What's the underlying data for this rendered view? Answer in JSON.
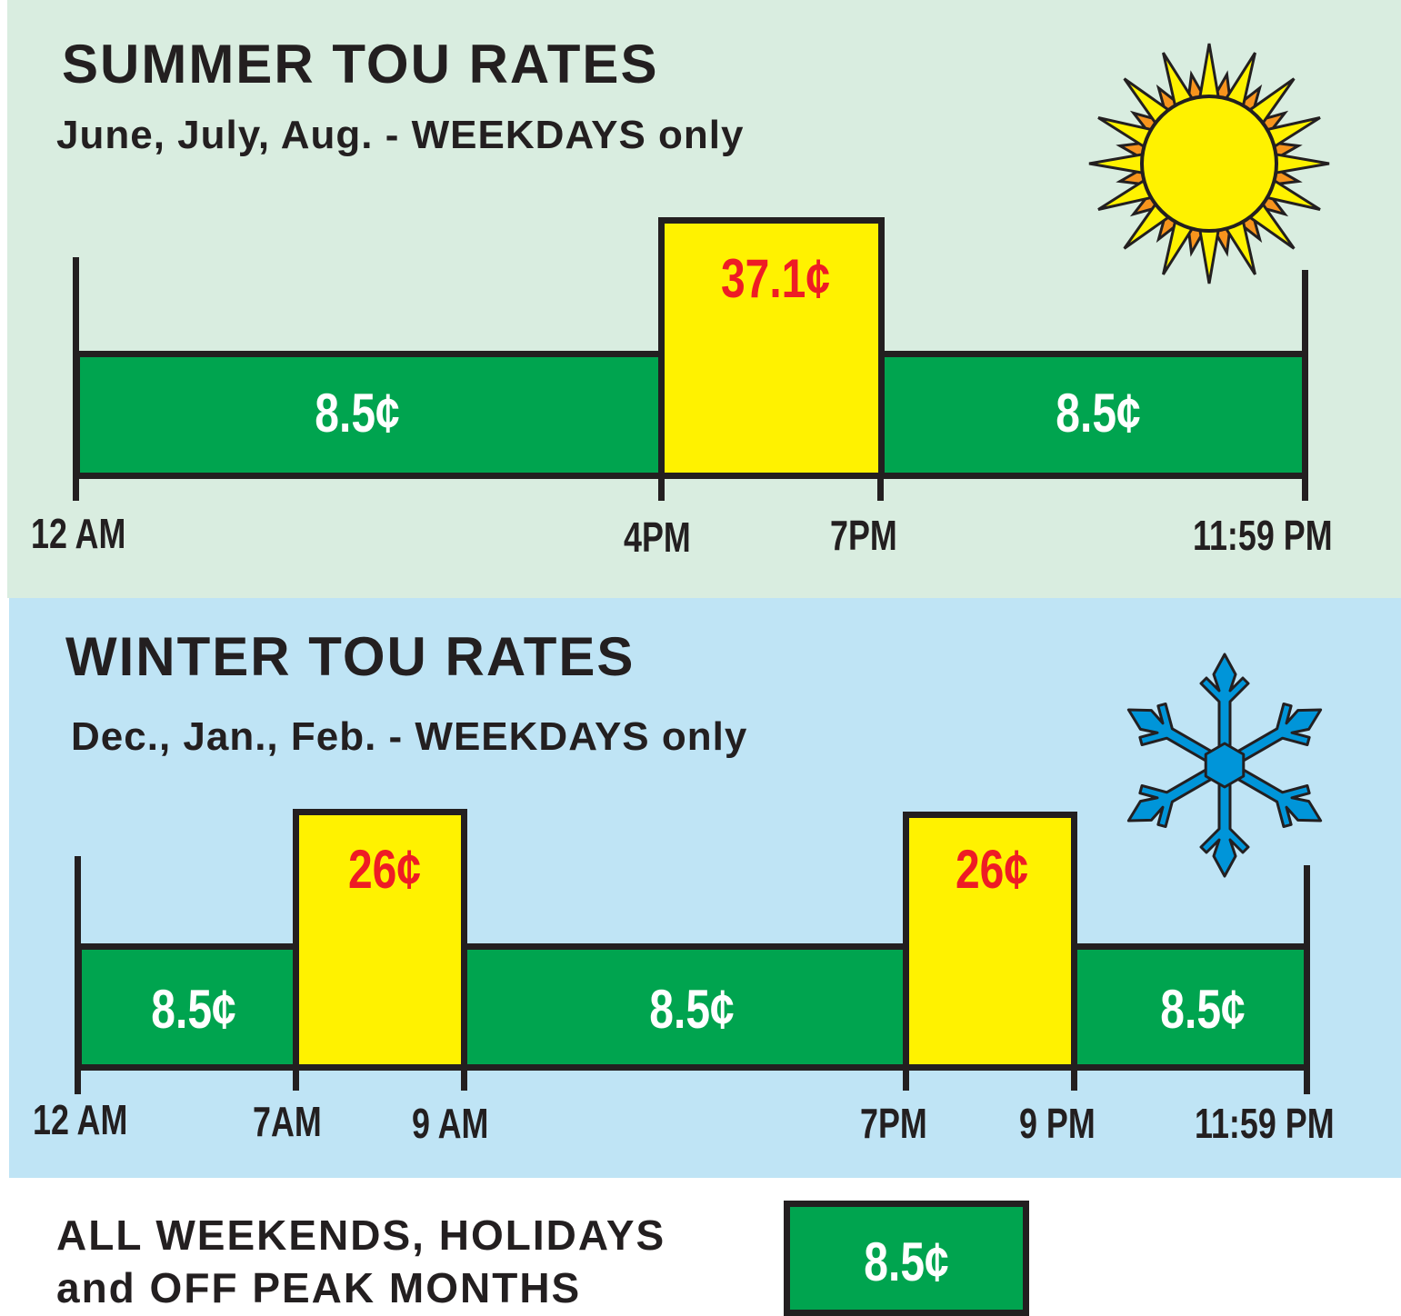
{
  "summer": {
    "title": "SUMMER TOU RATES",
    "subtitle": "June, July, Aug. - WEEKDAYS only",
    "segments": [
      {
        "rate": "8.5¢",
        "type": "off-peak"
      },
      {
        "rate": "37.1¢",
        "type": "peak"
      },
      {
        "rate": "8.5¢",
        "type": "off-peak"
      }
    ],
    "time_labels": [
      "12 AM",
      "4PM",
      "7PM",
      "11:59 PM"
    ],
    "icon": "sun-icon"
  },
  "winter": {
    "title": "WINTER TOU RATES",
    "subtitle": "Dec., Jan., Feb. - WEEKDAYS only",
    "segments": [
      {
        "rate": "8.5¢",
        "type": "off-peak"
      },
      {
        "rate": "26¢",
        "type": "peak"
      },
      {
        "rate": "8.5¢",
        "type": "off-peak"
      },
      {
        "rate": "26¢",
        "type": "peak"
      },
      {
        "rate": "8.5¢",
        "type": "off-peak"
      }
    ],
    "time_labels": [
      "12 AM",
      "7AM",
      "9 AM",
      "7PM",
      "9 PM",
      "11:59 PM"
    ],
    "icon": "snowflake-icon"
  },
  "footer": {
    "line1": "ALL WEEKENDS, HOLIDAYS",
    "line2": "and OFF PEAK MONTHS",
    "rate": "8.5¢"
  },
  "colors": {
    "off_peak": "#00a44f",
    "peak": "#fff200",
    "peak_text": "#ee1c25",
    "summer_bg": "#d9ede0",
    "winter_bg": "#bfe4f5"
  }
}
